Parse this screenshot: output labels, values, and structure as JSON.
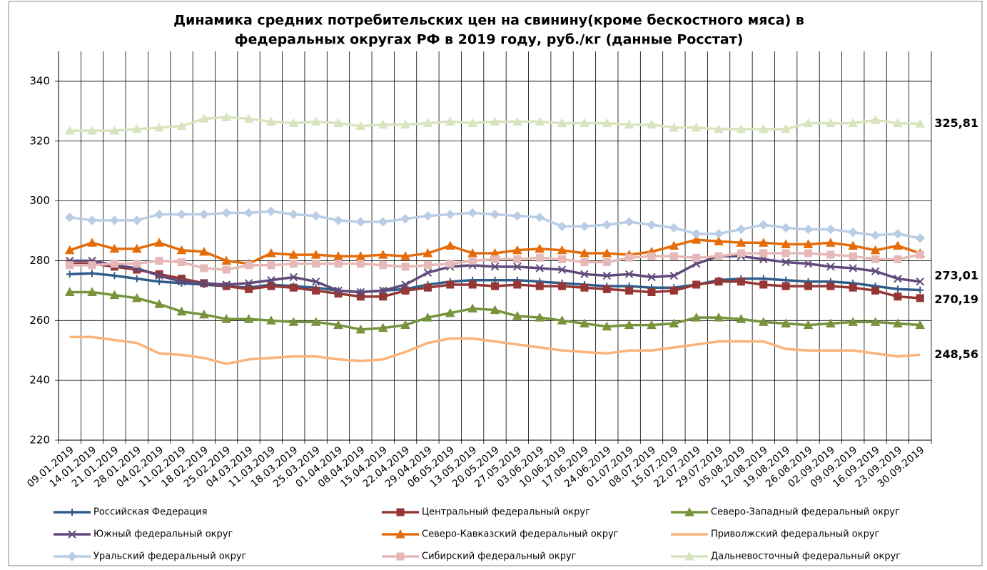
{
  "chart_data": {
    "type": "line",
    "title": "Динамика средних потребительских цен на свинину(кроме бескостного мяса) в",
    "subtitle": "федеральных округах РФ в 2019 году, руб./кг (данные Росстат)",
    "categories": [
      "09.01.2019",
      "14.01.2019",
      "21.01.2019",
      "28.01.2019",
      "04.02.2019",
      "11.02.2019",
      "18.02.2019",
      "25.02.2019",
      "04.03.2019",
      "11.03.2019",
      "18.03.2019",
      "25.03.2019",
      "01.04.2019",
      "08.04.2019",
      "15.04.2019",
      "22.04.2019",
      "29.04.2019",
      "06.05.2019",
      "13.05.2019",
      "20.05.2019",
      "27.05.2019",
      "03.06.2019",
      "10.06.2019",
      "17.06.2019",
      "24.06.2019",
      "01.07.2019",
      "08.07.2019",
      "15.07.2019",
      "22.07.2019",
      "29.07.2019",
      "05.08.2019",
      "12.08.2019",
      "19.08.2019",
      "26.08.2019",
      "02.09.2019",
      "09.09.2019",
      "16.09.2019",
      "23.09.2019",
      "30.09.2019"
    ],
    "ylim": [
      220,
      350
    ],
    "yticks": [
      220,
      240,
      260,
      280,
      300,
      320,
      340
    ],
    "grid": true,
    "series": [
      {
        "name": "Российская Федерация",
        "color": "#2f5c8a",
        "marker": "plus",
        "label_color": "#3366ff",
        "values": [
          275.5,
          275.8,
          275,
          274,
          273,
          272.5,
          272,
          271.5,
          271,
          272,
          271.5,
          271,
          270,
          269.5,
          270,
          270.5,
          272,
          273,
          273.5,
          273.5,
          273.5,
          273,
          272.5,
          272,
          271.5,
          271.5,
          271,
          271,
          272,
          273.5,
          274,
          274,
          273.5,
          273,
          273,
          272.5,
          271.5,
          270.5,
          270.19
        ],
        "value_labels": [
          null,
          null,
          null,
          null,
          null,
          null,
          null,
          null,
          null,
          null,
          null,
          null,
          null,
          null,
          null,
          null,
          null,
          null,
          null,
          null,
          null,
          null,
          null,
          null,
          null,
          null,
          null,
          null,
          null,
          null,
          null,
          null,
          null,
          null,
          null,
          null,
          null,
          null,
          "270,19"
        ]
      },
      {
        "name": "Центральный федеральный округ",
        "color": "#953735",
        "marker": "square",
        "values": [
          279,
          279,
          278,
          277,
          275.5,
          274,
          272.5,
          271.5,
          270.5,
          271.5,
          271,
          270,
          269,
          268,
          268,
          270,
          271,
          272,
          272,
          271.5,
          272,
          271.5,
          271.5,
          271,
          270.5,
          270,
          269.5,
          270,
          272,
          273,
          273,
          272,
          271.5,
          271.5,
          271.5,
          271,
          270,
          268,
          267.5
        ]
      },
      {
        "name": "Северо-Западный федеральный округ",
        "color": "#77933c",
        "marker": "triangle",
        "values": [
          269.5,
          269.5,
          268.5,
          267.5,
          265.5,
          263,
          262,
          260.5,
          260.5,
          260,
          259.5,
          259.5,
          258.5,
          257,
          257.5,
          258.5,
          261,
          262.5,
          264,
          263.5,
          261.5,
          261,
          260,
          259,
          258,
          258.5,
          258.5,
          259,
          261,
          261,
          260.5,
          259.5,
          259,
          258.5,
          259,
          259.5,
          259.5,
          259,
          258.5
        ]
      },
      {
        "name": "Южный федеральный округ",
        "color": "#604a7b",
        "marker": "x",
        "label_color": "#604a7b",
        "values": [
          280,
          280,
          278.5,
          277.5,
          275,
          273,
          272.5,
          272,
          272.5,
          273.5,
          274.5,
          273,
          270,
          269.5,
          270,
          272,
          276,
          278,
          278.5,
          278,
          278,
          277.5,
          277,
          275.5,
          275,
          275.5,
          274.5,
          275,
          279,
          281.5,
          281.5,
          280.5,
          279.5,
          279,
          278,
          277.5,
          276.5,
          274,
          273.01
        ],
        "value_labels": [
          null,
          null,
          null,
          null,
          null,
          null,
          null,
          null,
          null,
          null,
          null,
          null,
          null,
          null,
          null,
          null,
          null,
          null,
          null,
          null,
          null,
          null,
          null,
          null,
          null,
          null,
          null,
          null,
          null,
          null,
          null,
          null,
          null,
          null,
          null,
          null,
          null,
          null,
          "273,01"
        ]
      },
      {
        "name": "Северо-Кавказский федеральный округ",
        "color": "#e46c0a",
        "marker": "triangle",
        "values": [
          283.5,
          286,
          284,
          284,
          286,
          283.5,
          283,
          280,
          279,
          282.5,
          282,
          282,
          281.5,
          281.5,
          282,
          281.5,
          282.5,
          285,
          282.5,
          282.5,
          283.5,
          284,
          283.5,
          282.5,
          282.5,
          282,
          283,
          285,
          287,
          286.5,
          286,
          286,
          285.5,
          285.5,
          286,
          285,
          283.5,
          285,
          282.5
        ]
      },
      {
        "name": "Приволжский федеральный округ",
        "color": "#fab37a",
        "marker": "none",
        "label_color": "#f57c1f",
        "values": [
          254.5,
          254.5,
          253.5,
          252.5,
          249,
          248.5,
          247.5,
          245.5,
          247,
          247.5,
          248,
          248,
          247,
          246.5,
          247,
          249.5,
          252.5,
          254,
          254,
          253,
          252,
          251,
          250,
          249.5,
          249,
          250,
          250,
          251,
          252,
          253,
          253,
          253,
          250.5,
          250,
          250,
          250,
          249,
          248,
          248.56
        ],
        "value_labels": [
          null,
          null,
          null,
          null,
          null,
          null,
          null,
          null,
          null,
          null,
          null,
          null,
          null,
          null,
          null,
          null,
          null,
          null,
          null,
          null,
          null,
          null,
          null,
          null,
          null,
          null,
          null,
          null,
          null,
          null,
          null,
          null,
          null,
          null,
          null,
          null,
          null,
          null,
          "248,56"
        ]
      },
      {
        "name": "Уральский федеральный округ",
        "color": "#b9cde5",
        "marker": "diamond",
        "values": [
          294.5,
          293.5,
          293.5,
          293.5,
          295.5,
          295.5,
          295.5,
          296,
          296,
          296.5,
          295.5,
          295,
          293.5,
          293,
          293,
          294,
          295,
          295.5,
          296,
          295.5,
          295,
          294.5,
          291.5,
          291.5,
          292,
          293,
          292,
          291,
          289,
          289,
          290.5,
          292,
          291,
          290.5,
          290.5,
          289.5,
          288.5,
          289,
          287.5
        ]
      },
      {
        "name": "Сибирский федеральный округ",
        "color": "#e6b9b8",
        "marker": "square",
        "values": [
          278.5,
          278.5,
          279,
          279,
          280,
          279.5,
          277.5,
          277,
          278.5,
          278.5,
          279,
          279,
          279,
          279,
          278.5,
          278,
          278.5,
          279,
          280,
          280.5,
          280.5,
          281,
          280.5,
          279.5,
          279.5,
          281,
          281.5,
          281.5,
          281,
          281.5,
          282.5,
          282.5,
          282.5,
          282.5,
          282,
          281.5,
          280.5,
          280.5,
          282
        ]
      },
      {
        "name": "Дальневосточный федеральный округ",
        "color": "#d7e4bd",
        "marker": "triangle",
        "label_color": "#808000",
        "values": [
          323.5,
          323.5,
          323.5,
          324,
          324.5,
          325,
          327.5,
          328,
          327.5,
          326.5,
          326,
          326.5,
          326,
          325,
          325.5,
          325.5,
          326,
          326.5,
          326,
          326.5,
          326.5,
          326.5,
          326,
          326,
          326,
          325.5,
          325.5,
          324.5,
          324.5,
          324,
          324,
          324,
          324,
          326,
          326,
          326,
          327,
          326,
          325.81
        ],
        "value_labels": [
          null,
          null,
          null,
          null,
          null,
          null,
          null,
          null,
          null,
          null,
          null,
          null,
          null,
          null,
          null,
          null,
          null,
          null,
          null,
          null,
          null,
          null,
          null,
          null,
          null,
          null,
          null,
          null,
          null,
          null,
          null,
          null,
          null,
          null,
          null,
          null,
          null,
          null,
          "325,81"
        ]
      }
    ]
  }
}
